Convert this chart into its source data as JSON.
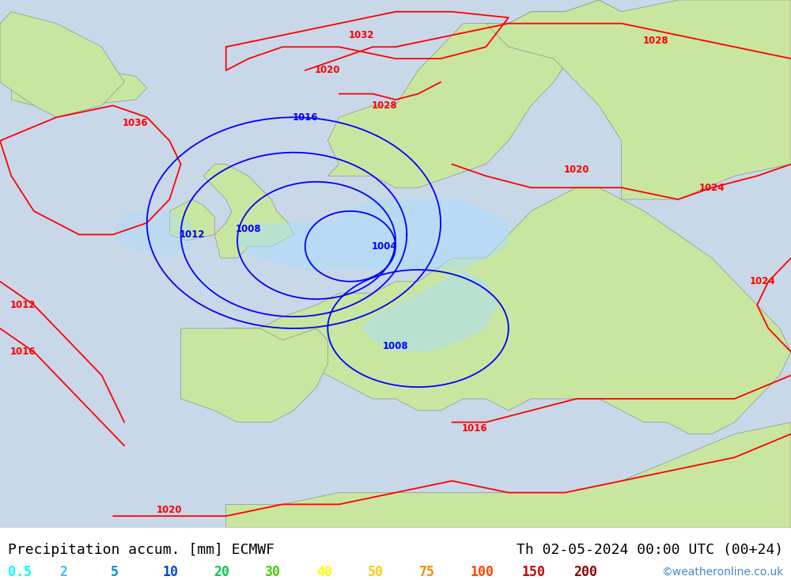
{
  "title_left": "Precipitation accum. [mm] ECMWF",
  "title_right": "Th 02-05-2024 00:00 UTC (00+24)",
  "watermark": "©weatheronline.co.uk",
  "legend_values": [
    "0.5",
    "2",
    "5",
    "10",
    "20",
    "30",
    "40",
    "50",
    "75",
    "100",
    "150",
    "200"
  ],
  "legend_colors": [
    "#00ffff",
    "#00ccff",
    "#0099ff",
    "#0066ff",
    "#00cc00",
    "#33cc33",
    "#ffff00",
    "#ffcc00",
    "#ff9900",
    "#ff6600",
    "#ff0000",
    "#cc0000"
  ],
  "background_color": "#d3d3d3",
  "land_color_light": "#c8e6a0",
  "land_color_dark": "#a0c060",
  "sea_color": "#b0d8f0",
  "precip_light_blue": "#aaddff",
  "precip_mid_blue": "#80ccee",
  "isobar_red_color": "#ff0000",
  "isobar_blue_color": "#0000cc",
  "title_fontsize": 14,
  "legend_fontsize": 13,
  "map_extent": [
    -25,
    45,
    27,
    72
  ]
}
